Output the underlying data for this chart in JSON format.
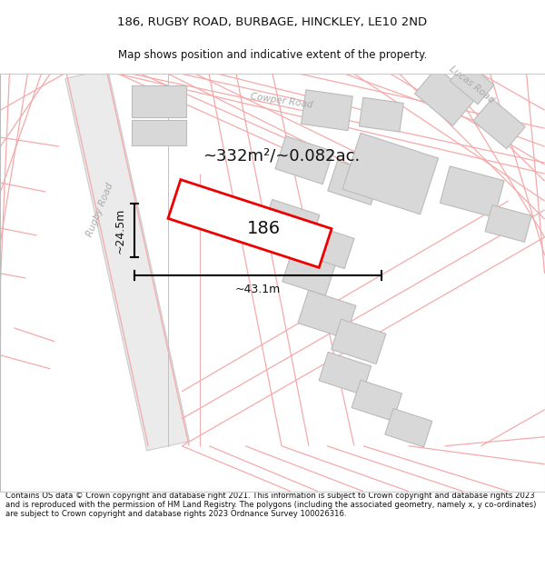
{
  "title": "186, RUGBY ROAD, BURBAGE, HINCKLEY, LE10 2ND",
  "subtitle": "Map shows position and indicative extent of the property.",
  "footer": "Contains OS data © Crown copyright and database right 2021. This information is subject to Crown copyright and database rights 2023 and is reproduced with the permission of HM Land Registry. The polygons (including the associated geometry, namely x, y co-ordinates) are subject to Crown copyright and database rights 2023 Ordnance Survey 100026316.",
  "area_label": "~332m²/~0.082ac.",
  "width_label": "~43.1m",
  "height_label": "~24.5m",
  "property_number": "186",
  "map_bg": "#ffffff",
  "road_fill": "#e8e8e8",
  "road_edge": "#cccccc",
  "building_fill": "#d8d8d8",
  "building_edge": "#bbbbbb",
  "boundary_color": "#f5aaaa",
  "property_fill": "#ffffff",
  "property_stroke": "#ee0000",
  "dim_color": "#111111",
  "label_color": "#111111",
  "road_label_color": "#aaaaaa",
  "title_fontsize": 9.5,
  "subtitle_fontsize": 8.5,
  "footer_fontsize": 6.1
}
